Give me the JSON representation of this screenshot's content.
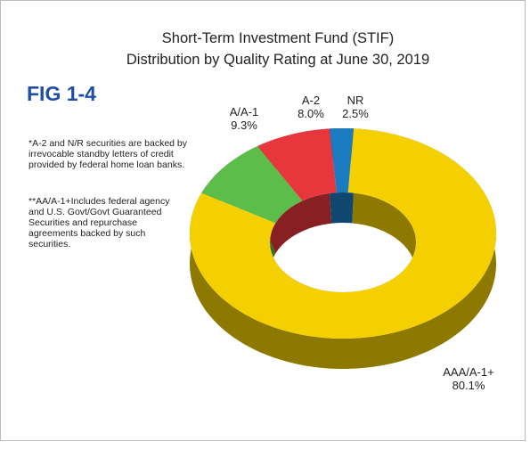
{
  "chart_data": {
    "type": "donut3d",
    "title": [
      "Short-Term Investment Fund (STIF)",
      "Distribution by Quality Rating at June 30, 2019"
    ],
    "figure_label": "FIG 1-4",
    "notes": [
      "*A-2 and N/R securities are backed by irrevocable standby letters of credit provided by federal home loan banks.",
      "**AA/A-1+Includes federal agency and U.S. Govt/Govt Guaranteed Securities and repurchase agreements backed by such securities."
    ],
    "categories": [
      "AAA/A-1+",
      "A/A-1",
      "A-2",
      "NR"
    ],
    "values": [
      80.1,
      9.3,
      8.0,
      2.5
    ],
    "value_labels": [
      "80.1%",
      "9.3%",
      "8.0%",
      "2.5%"
    ],
    "colors": [
      "#f4d000",
      "#5cbd4b",
      "#e8363d",
      "#1b7bc0"
    ]
  }
}
